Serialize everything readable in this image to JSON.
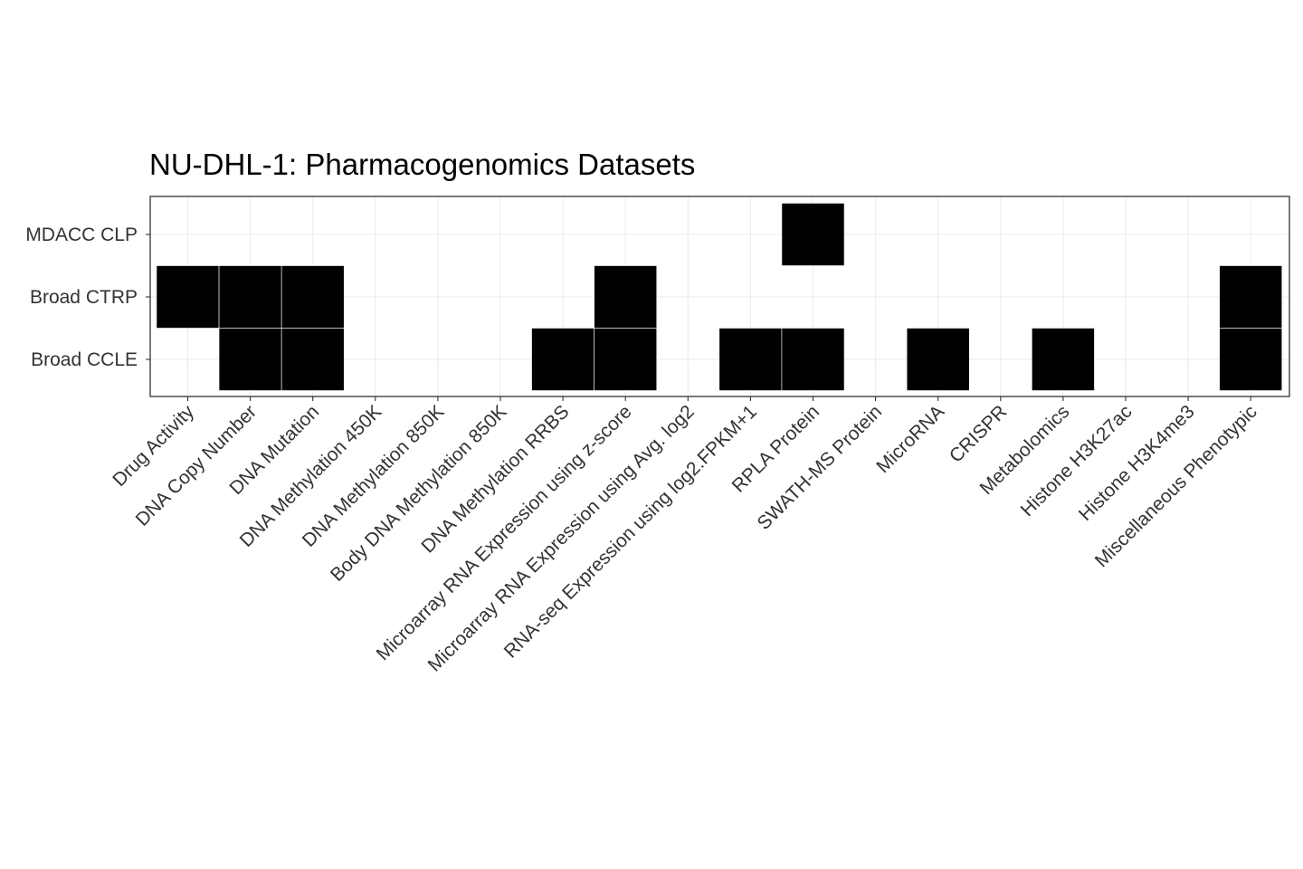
{
  "chart_data": {
    "type": "heatmap",
    "title": "NU-DHL-1: Pharmacogenomics Datasets",
    "xlabel": "",
    "ylabel": "",
    "grid": true,
    "legend": "none",
    "fill_color": "#000000",
    "x": [
      "Drug Activity",
      "DNA Copy Number",
      "DNA Mutation",
      "DNA Methylation 450K",
      "DNA Methylation 850K",
      "Body DNA Methylation 850K",
      "DNA Methylation RRBS",
      "Microarray RNA Expression using z-score",
      "Microarray RNA Expression using Avg. log2",
      "RNA-seq Expression using log2.FPKM+1",
      "RPLA Protein",
      "SWATH-MS Protein",
      "MicroRNA",
      "CRISPR",
      "Metabolomics",
      "Histone H3K27ac",
      "Histone H3K4me3",
      "Miscellaneous Phenotypic"
    ],
    "y": [
      "MDACC CLP",
      "Broad CTRP",
      "Broad CCLE"
    ],
    "cells": [
      {
        "y": "MDACC CLP",
        "x": "RPLA Protein"
      },
      {
        "y": "Broad CTRP",
        "x": "Drug Activity"
      },
      {
        "y": "Broad CTRP",
        "x": "DNA Copy Number"
      },
      {
        "y": "Broad CTRP",
        "x": "DNA Mutation"
      },
      {
        "y": "Broad CTRP",
        "x": "Microarray RNA Expression using z-score"
      },
      {
        "y": "Broad CTRP",
        "x": "Miscellaneous Phenotypic"
      },
      {
        "y": "Broad CCLE",
        "x": "DNA Copy Number"
      },
      {
        "y": "Broad CCLE",
        "x": "DNA Mutation"
      },
      {
        "y": "Broad CCLE",
        "x": "DNA Methylation RRBS"
      },
      {
        "y": "Broad CCLE",
        "x": "Microarray RNA Expression using z-score"
      },
      {
        "y": "Broad CCLE",
        "x": "RNA-seq Expression using log2.FPKM+1"
      },
      {
        "y": "Broad CCLE",
        "x": "RPLA Protein"
      },
      {
        "y": "Broad CCLE",
        "x": "MicroRNA"
      },
      {
        "y": "Broad CCLE",
        "x": "Metabolomics"
      },
      {
        "y": "Broad CCLE",
        "x": "Miscellaneous Phenotypic"
      }
    ]
  }
}
